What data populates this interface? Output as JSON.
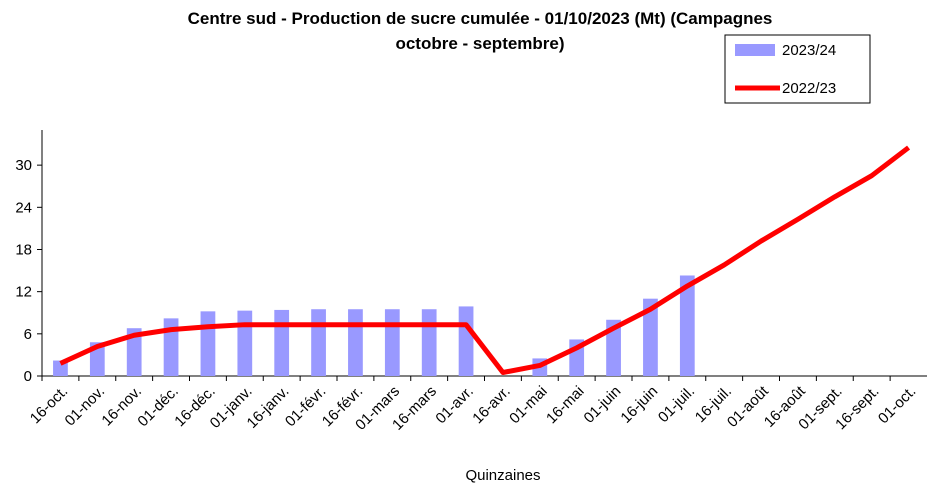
{
  "chart_data": {
    "type": "bar-line",
    "title": "Centre sud - Production de sucre cumulée - 01/10/2023 (Mt) (Campagnes",
    "subtitle": "octobre - septembre)",
    "x_label": "Quinzaines",
    "categories": [
      "16-oct.",
      "01-nov.",
      "16-nov.",
      "01-déc.",
      "16-déc.",
      "01-janv.",
      "16-janv.",
      "01-févr.",
      "16-févr.",
      "01-mars",
      "16-mars",
      "01-avr.",
      "16-avr.",
      "01-mai",
      "16-mai",
      "01-juin",
      "16-juin",
      "01-juil.",
      "16-juil.",
      "01-août",
      "16-août",
      "01-sept.",
      "16-sept.",
      "01-oct."
    ],
    "series": [
      {
        "name": "2023/24",
        "type": "bar",
        "color": "#9999ff",
        "values": [
          2.2,
          4.8,
          6.8,
          8.2,
          9.2,
          9.3,
          9.4,
          9.5,
          9.5,
          9.5,
          9.5,
          9.9,
          null,
          2.5,
          5.2,
          8.0,
          11.0,
          14.3,
          null,
          null,
          null,
          null,
          null,
          null
        ]
      },
      {
        "name": "2022/23",
        "type": "line",
        "color": "#ff0000",
        "values": [
          1.8,
          4.2,
          5.8,
          6.6,
          7.0,
          7.3,
          7.3,
          7.3,
          7.3,
          7.3,
          7.3,
          7.3,
          0.5,
          1.5,
          4.0,
          6.8,
          9.5,
          12.8,
          15.8,
          19.2,
          22.3,
          25.5,
          28.5,
          32.5
        ]
      }
    ],
    "ylim": [
      0,
      35
    ],
    "yticks": [
      0,
      6,
      12,
      18,
      24,
      30
    ],
    "grid": false
  }
}
